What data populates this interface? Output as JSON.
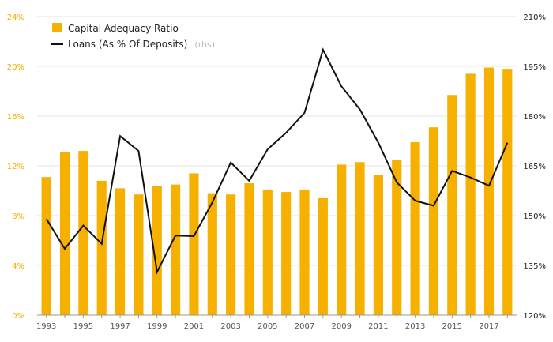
{
  "chart_data": {
    "type": "bar+line",
    "categories": [
      "1993",
      "1994",
      "1995",
      "1996",
      "1997",
      "1998",
      "1999",
      "2000",
      "2001",
      "2002",
      "2003",
      "2004",
      "2005",
      "2006",
      "2007",
      "2008",
      "2009",
      "2010",
      "2011",
      "2012",
      "2013",
      "2014",
      "2015",
      "2016",
      "2017",
      "2018"
    ],
    "x_tick_labels": [
      "1993",
      "1995",
      "1997",
      "1999",
      "2001",
      "2003",
      "2005",
      "2007",
      "2009",
      "2011",
      "2013",
      "2015",
      "2017"
    ],
    "series": [
      {
        "name": "Capital Adequacy Ratio",
        "type": "bar",
        "axis": "left",
        "values": [
          11.1,
          13.1,
          13.2,
          10.8,
          10.2,
          9.7,
          10.4,
          10.5,
          11.4,
          9.8,
          9.7,
          10.6,
          10.1,
          9.9,
          10.1,
          9.4,
          12.1,
          12.3,
          11.3,
          12.5,
          13.9,
          15.1,
          17.7,
          19.4,
          19.9,
          19.8
        ],
        "color": "#f5b000"
      },
      {
        "name": "Loans (As % Of Deposits)",
        "note": "(rhs)",
        "type": "line",
        "axis": "right",
        "values": [
          149.0,
          140.0,
          147.0,
          141.5,
          174.0,
          169.5,
          133.0,
          144.0,
          143.8,
          154.0,
          166.0,
          160.5,
          170.0,
          175.0,
          181.0,
          200.0,
          189.0,
          182.0,
          172.0,
          160.0,
          154.5,
          153.0,
          163.5,
          161.5,
          159.0,
          172.0
        ],
        "color": "#111111"
      }
    ],
    "left_axis": {
      "ticks": [
        "0%",
        "4%",
        "8%",
        "12%",
        "16%",
        "20%",
        "24%"
      ],
      "range": [
        0,
        24
      ],
      "color": "#f5b000"
    },
    "right_axis": {
      "ticks": [
        "120%",
        "135%",
        "150%",
        "165%",
        "180%",
        "195%",
        "210%"
      ],
      "range": [
        120,
        210
      ]
    },
    "grid": true,
    "legend_position": "top-left"
  }
}
